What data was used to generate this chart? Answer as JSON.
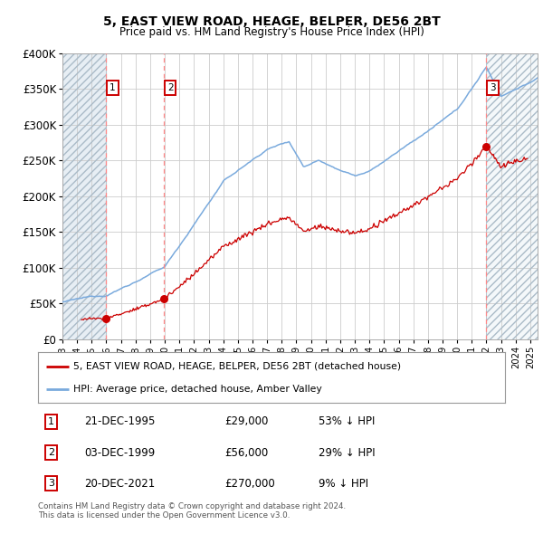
{
  "title": "5, EAST VIEW ROAD, HEAGE, BELPER, DE56 2BT",
  "subtitle": "Price paid vs. HM Land Registry's House Price Index (HPI)",
  "xlim": [
    1993.0,
    2025.5
  ],
  "ylim": [
    0,
    400000
  ],
  "yticks": [
    0,
    50000,
    100000,
    150000,
    200000,
    250000,
    300000,
    350000,
    400000
  ],
  "ytick_labels": [
    "£0",
    "£50K",
    "£100K",
    "£150K",
    "£200K",
    "£250K",
    "£300K",
    "£350K",
    "£400K"
  ],
  "sale_dates_num": [
    1995.97,
    1999.92,
    2021.97
  ],
  "sale_prices": [
    29000,
    56000,
    270000
  ],
  "sale_labels": [
    "1",
    "2",
    "3"
  ],
  "legend_sale_label": "5, EAST VIEW ROAD, HEAGE, BELPER, DE56 2BT (detached house)",
  "legend_hpi_label": "HPI: Average price, detached house, Amber Valley",
  "table_rows": [
    {
      "num": "1",
      "date": "21-DEC-1995",
      "price": "£29,000",
      "hpi": "53% ↓ HPI"
    },
    {
      "num": "2",
      "date": "03-DEC-1999",
      "price": "£56,000",
      "hpi": "29% ↓ HPI"
    },
    {
      "num": "3",
      "date": "20-DEC-2021",
      "price": "£270,000",
      "hpi": "9% ↓ HPI"
    }
  ],
  "footer": "Contains HM Land Registry data © Crown copyright and database right 2024.\nThis data is licensed under the Open Government Licence v3.0.",
  "sale_color": "#cc0000",
  "hpi_color": "#7aaadd",
  "background_color": "#ffffff",
  "grid_color": "#cccccc",
  "vline_color": "#ff8888"
}
